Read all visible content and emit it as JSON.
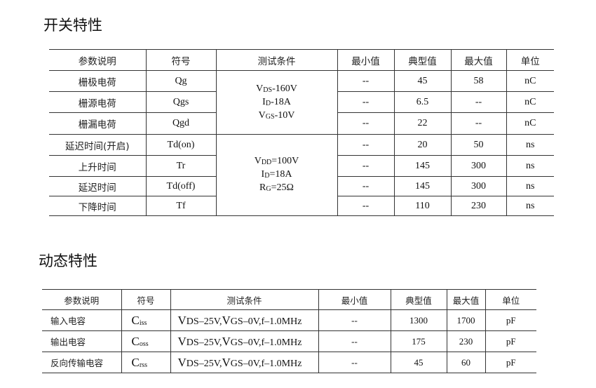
{
  "switching": {
    "title": "开关特性",
    "headers": [
      "参数说明",
      "符号",
      "测试条件",
      "最小值",
      "典型值",
      "最大值",
      "单位"
    ],
    "conditions": [
      [
        "V",
        "DS",
        "-160V"
      ],
      [
        "I",
        "D",
        "-18A"
      ],
      [
        "V",
        "GS",
        "-10V"
      ],
      [
        "V",
        "DD",
        "=100V"
      ],
      [
        "I",
        "D",
        "=18A"
      ],
      [
        "R",
        "G",
        "=25Ω"
      ]
    ],
    "rows": [
      {
        "param": "栅极电荷",
        "symbol": "Qg",
        "min": "--",
        "typ": "45",
        "max": "58",
        "unit": "nC"
      },
      {
        "param": "栅源电荷",
        "symbol": "Qgs",
        "min": "--",
        "typ": "6.5",
        "max": "--",
        "unit": "nC"
      },
      {
        "param": "栅漏电荷",
        "symbol": "Qgd",
        "min": "--",
        "typ": "22",
        "max": "--",
        "unit": "nC"
      },
      {
        "param": "延迟时间(开启)",
        "symbol": "Td(on)",
        "min": "--",
        "typ": "20",
        "max": "50",
        "unit": "ns"
      },
      {
        "param": "上升时间",
        "symbol": "Tr",
        "min": "--",
        "typ": "145",
        "max": "300",
        "unit": "ns"
      },
      {
        "param": "延迟时间",
        "symbol": "Td(off)",
        "min": "--",
        "typ": "145",
        "max": "300",
        "unit": "ns"
      },
      {
        "param": "下降时间",
        "symbol": "Tf",
        "min": "--",
        "typ": "110",
        "max": "230",
        "unit": "ns"
      }
    ]
  },
  "dynamic": {
    "title": "动态特性",
    "headers": [
      "参数说明",
      "符号",
      "测试条件",
      "最小值",
      "典型值",
      "最大值",
      "单位"
    ],
    "rows": [
      {
        "param": "输入电容",
        "sym_main": "C",
        "sym_sub": "iss",
        "cond": [
          "V",
          "DS",
          "–25V,",
          "V",
          "GS",
          "–0V,f–1.0MHz"
        ],
        "min": "--",
        "typ": "1300",
        "max": "1700",
        "unit": "pF"
      },
      {
        "param": "输出电容",
        "sym_main": "C",
        "sym_sub": "oss",
        "cond": [
          "V",
          "DS",
          "–25V,",
          "V",
          "GS",
          "–0V,f–1.0MHz"
        ],
        "min": "--",
        "typ": "175",
        "max": "230",
        "unit": "pF"
      },
      {
        "param": "反向传输电容",
        "sym_main": "C",
        "sym_sub": "rss",
        "cond": [
          "V",
          "DS",
          "–25V,",
          "V",
          "GS",
          "–0V,f–1.0MHz"
        ],
        "min": "--",
        "typ": "45",
        "max": "60",
        "unit": "pF"
      }
    ]
  }
}
